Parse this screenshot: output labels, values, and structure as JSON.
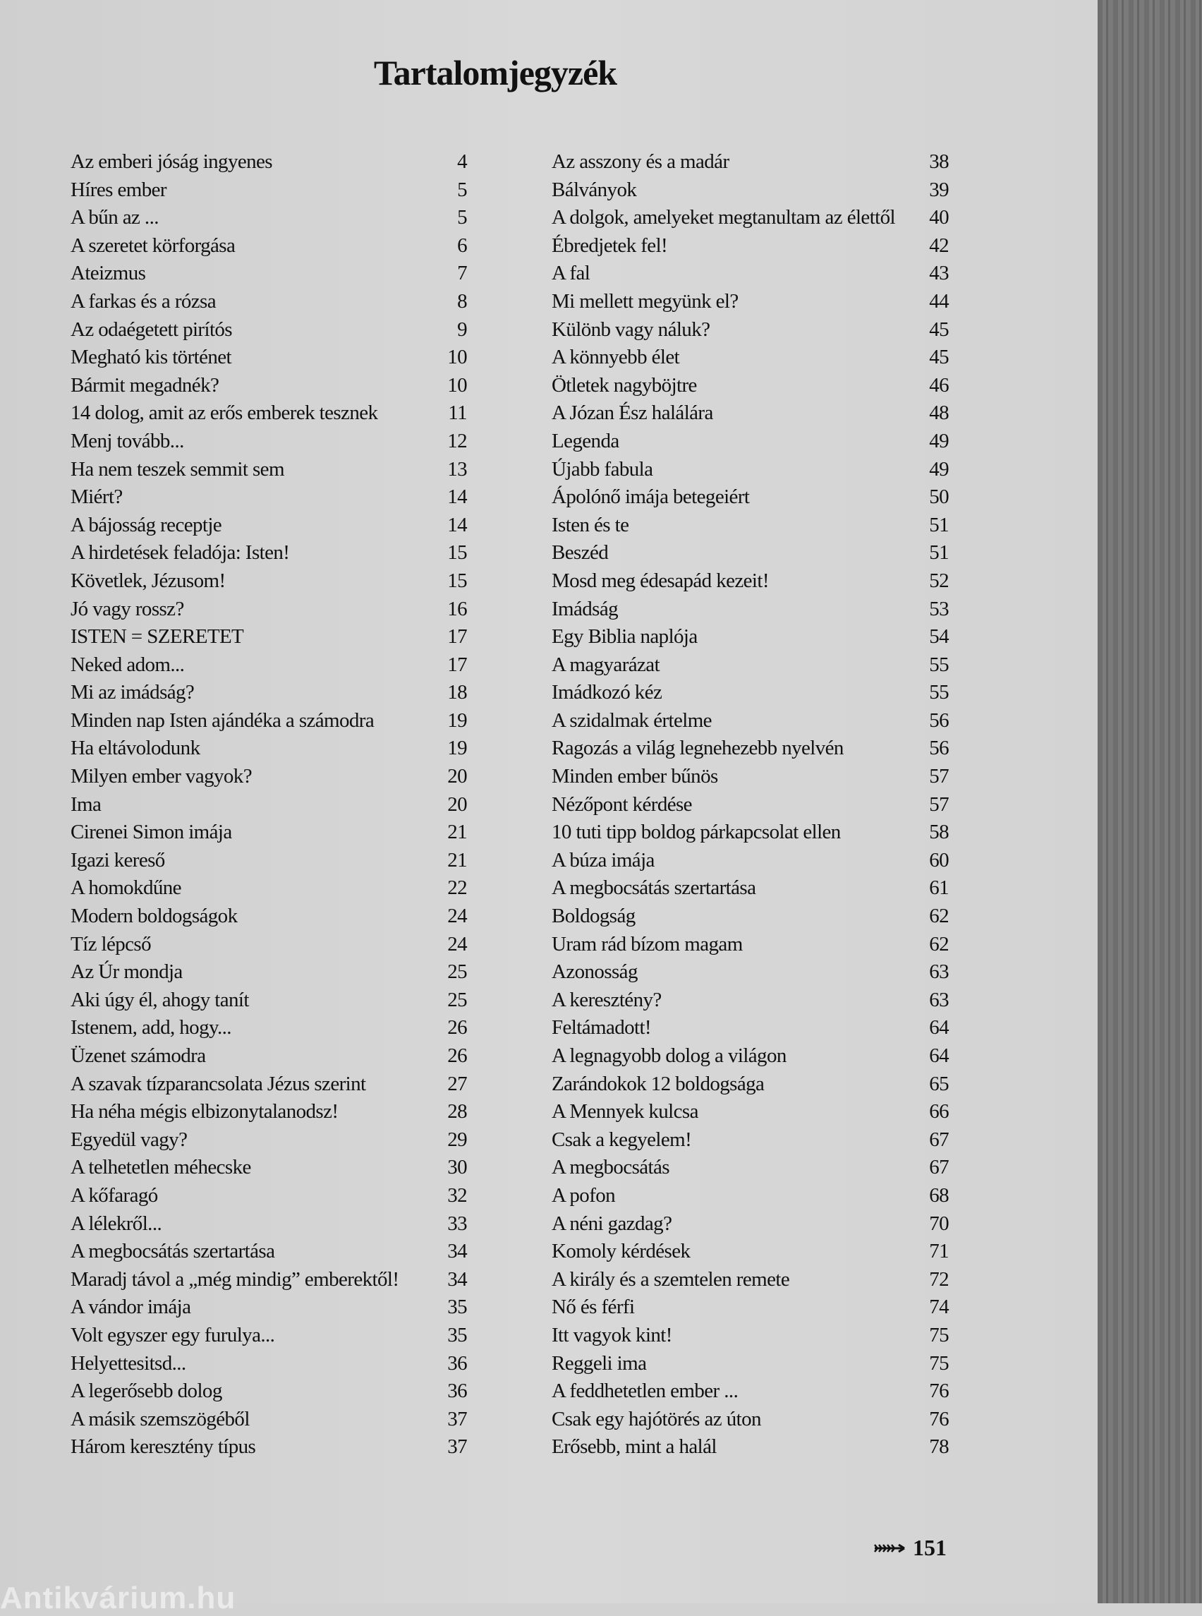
{
  "title": "Tartalomjegyzék",
  "left_column": [
    {
      "title": "Az emberi jóság ingyenes",
      "page": "4"
    },
    {
      "title": "Híres ember",
      "page": "5"
    },
    {
      "title": "A bűn az ...",
      "page": "5"
    },
    {
      "title": "A szeretet körforgása",
      "page": "6"
    },
    {
      "title": "Ateizmus",
      "page": "7"
    },
    {
      "title": "A farkas és a rózsa",
      "page": "8"
    },
    {
      "title": "Az odaégetett pirítós",
      "page": "9"
    },
    {
      "title": "Megható kis történet",
      "page": "10"
    },
    {
      "title": "Bármit megadnék?",
      "page": "10"
    },
    {
      "title": "14 dolog, amit az erős emberek tesznek",
      "page": "11"
    },
    {
      "title": "Menj tovább...",
      "page": "12"
    },
    {
      "title": "Ha nem teszek semmit sem",
      "page": "13"
    },
    {
      "title": "Miért?",
      "page": "14"
    },
    {
      "title": "A bájosság receptje",
      "page": "14"
    },
    {
      "title": "A hirdetések feladója: Isten!",
      "page": "15"
    },
    {
      "title": "Követlek, Jézusom!",
      "page": "15"
    },
    {
      "title": "Jó vagy rossz?",
      "page": "16"
    },
    {
      "title": "ISTEN = SZERETET",
      "page": "17"
    },
    {
      "title": "Neked adom...",
      "page": "17"
    },
    {
      "title": "Mi az imádság?",
      "page": "18"
    },
    {
      "title": "Minden nap Isten ajándéka a számodra",
      "page": "19"
    },
    {
      "title": "Ha eltávolodunk",
      "page": "19"
    },
    {
      "title": "Milyen ember vagyok?",
      "page": "20"
    },
    {
      "title": "Ima",
      "page": "20"
    },
    {
      "title": "Cirenei Simon imája",
      "page": "21"
    },
    {
      "title": "Igazi kereső",
      "page": "21"
    },
    {
      "title": "A homokdűne",
      "page": "22"
    },
    {
      "title": "Modern boldogságok",
      "page": "24"
    },
    {
      "title": "Tíz lépcső",
      "page": "24"
    },
    {
      "title": "Az Úr mondja",
      "page": "25"
    },
    {
      "title": "Aki úgy él, ahogy tanít",
      "page": "25"
    },
    {
      "title": "Istenem, add, hogy...",
      "page": "26"
    },
    {
      "title": "Üzenet számodra",
      "page": "26"
    },
    {
      "title": "A szavak tízparancsolata Jézus szerint",
      "page": "27"
    },
    {
      "title": "Ha néha mégis elbizonytalanodsz!",
      "page": "28"
    },
    {
      "title": "Egyedül vagy?",
      "page": "29"
    },
    {
      "title": "A telhetetlen méhecske",
      "page": "30"
    },
    {
      "title": "A kőfaragó",
      "page": "32"
    },
    {
      "title": "A lélekről...",
      "page": "33"
    },
    {
      "title": "A megbocsátás szertartása",
      "page": "34"
    },
    {
      "title": "Maradj távol a „még mindig” emberektől!",
      "page": "34"
    },
    {
      "title": "A vándor imája",
      "page": "35"
    },
    {
      "title": "Volt egyszer egy furulya...",
      "page": "35"
    },
    {
      "title": "Helyettesitsd...",
      "page": "36"
    },
    {
      "title": "A legerősebb dolog",
      "page": "36"
    },
    {
      "title": "A másik szemszögéből",
      "page": "37"
    },
    {
      "title": "Három keresztény típus",
      "page": "37"
    }
  ],
  "right_column": [
    {
      "title": "Az asszony és a madár",
      "page": "38"
    },
    {
      "title": "Bálványok",
      "page": "39"
    },
    {
      "title": "A dolgok, amelyeket megtanultam az élettől",
      "page": "40"
    },
    {
      "title": "Ébredjetek fel!",
      "page": "42"
    },
    {
      "title": "A fal",
      "page": "43"
    },
    {
      "title": "Mi mellett megyünk el?",
      "page": "44"
    },
    {
      "title": "Különb vagy náluk?",
      "page": "45"
    },
    {
      "title": "A könnyebb élet",
      "page": "45"
    },
    {
      "title": "Ötletek nagyböjtre",
      "page": "46"
    },
    {
      "title": "A Józan Ész halálára",
      "page": "48"
    },
    {
      "title": "Legenda",
      "page": "49"
    },
    {
      "title": "Újabb fabula",
      "page": "49"
    },
    {
      "title": "Ápolónő imája betegeiért",
      "page": "50"
    },
    {
      "title": "Isten és te",
      "page": "51"
    },
    {
      "title": "Beszéd",
      "page": "51"
    },
    {
      "title": "Mosd meg édesapád kezeit!",
      "page": "52"
    },
    {
      "title": "Imádság",
      "page": "53"
    },
    {
      "title": "Egy Biblia naplója",
      "page": "54"
    },
    {
      "title": "A magyarázat",
      "page": "55"
    },
    {
      "title": "Imádkozó kéz",
      "page": "55"
    },
    {
      "title": "A szidalmak értelme",
      "page": "56"
    },
    {
      "title": "Ragozás a világ legnehezebb nyelvén",
      "page": "56"
    },
    {
      "title": "Minden ember bűnös",
      "page": "57"
    },
    {
      "title": "Nézőpont kérdése",
      "page": "57"
    },
    {
      "title": "10 tuti tipp boldog párkapcsolat ellen",
      "page": "58"
    },
    {
      "title": "A búza imája",
      "page": "60"
    },
    {
      "title": "A megbocsátás szertartása",
      "page": "61"
    },
    {
      "title": "Boldogság",
      "page": "62"
    },
    {
      "title": "Uram rád bízom magam",
      "page": "62"
    },
    {
      "title": "Azonosság",
      "page": "63"
    },
    {
      "title": "A keresztény?",
      "page": "63"
    },
    {
      "title": "Feltámadott!",
      "page": "64"
    },
    {
      "title": "A legnagyobb dolog a világon",
      "page": "64"
    },
    {
      "title": "Zarándokok 12 boldogsága",
      "page": "65"
    },
    {
      "title": "A Mennyek kulcsa",
      "page": "66"
    },
    {
      "title": "Csak a kegyelem!",
      "page": "67"
    },
    {
      "title": "A megbocsátás",
      "page": "67"
    },
    {
      "title": "A pofon",
      "page": "68"
    },
    {
      "title": "A néni gazdag?",
      "page": "70"
    },
    {
      "title": "Komoly kérdések",
      "page": "71"
    },
    {
      "title": "A király és a szemtelen remete",
      "page": "72"
    },
    {
      "title": "Nő és férfi",
      "page": "74"
    },
    {
      "title": "Itt vagyok kint!",
      "page": "75"
    },
    {
      "title": "Reggeli ima",
      "page": "75"
    },
    {
      "title": "A feddhetetlen ember ...",
      "page": "76"
    },
    {
      "title": "Csak egy hajótörés az úton",
      "page": "76"
    },
    {
      "title": "Erősebb, mint a halál",
      "page": "78"
    }
  ],
  "folio": {
    "page_number": "151",
    "ornament_icon": "fern-leaf-arrow-icon"
  },
  "watermark": "Antikvárium.hu"
}
